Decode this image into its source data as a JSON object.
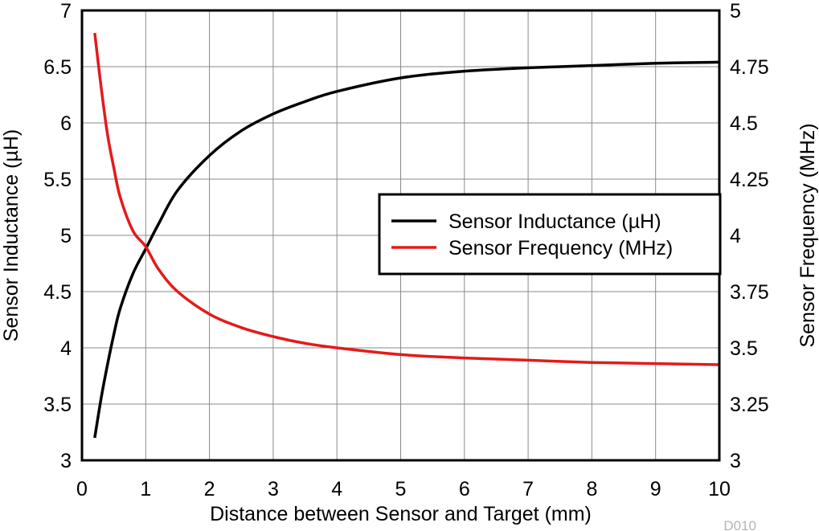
{
  "chart_data": {
    "type": "line",
    "xlabel": "Distance between Sensor and Target (mm)",
    "ylabel_left": "Sensor Inductance (µH)",
    "ylabel_right": "Sensor Frequency (MHz)",
    "xlim": [
      0,
      10
    ],
    "ylim_left": [
      3,
      7
    ],
    "ylim_right": [
      3,
      5
    ],
    "x_ticks": [
      "0",
      "1",
      "2",
      "3",
      "4",
      "5",
      "6",
      "7",
      "8",
      "9",
      "10"
    ],
    "y_left_ticks": [
      "3",
      "3.5",
      "4",
      "4.5",
      "5",
      "5.5",
      "6",
      "6.5",
      "7"
    ],
    "y_right_ticks": [
      "3",
      "3.25",
      "3.5",
      "3.75",
      "4",
      "4.25",
      "4.5",
      "4.75",
      "5"
    ],
    "grid": true,
    "legend_position": "center-right",
    "note": "D010",
    "series": [
      {
        "name": "Sensor Inductance (µH)",
        "axis": "left",
        "color": "#000000",
        "x": [
          0.2,
          0.3,
          0.4,
          0.5,
          0.6,
          0.8,
          1.0,
          1.2,
          1.5,
          2.0,
          2.5,
          3.0,
          3.5,
          4.0,
          5.0,
          6.0,
          7.0,
          8.0,
          9.0,
          10.0
        ],
        "y": [
          3.2,
          3.55,
          3.85,
          4.12,
          4.35,
          4.66,
          4.88,
          5.1,
          5.4,
          5.71,
          5.93,
          6.08,
          6.19,
          6.28,
          6.4,
          6.46,
          6.49,
          6.51,
          6.53,
          6.54
        ]
      },
      {
        "name": "Sensor Frequency (MHz)",
        "axis": "right",
        "color": "#e41a1a",
        "x": [
          0.2,
          0.3,
          0.4,
          0.5,
          0.6,
          0.8,
          1.0,
          1.2,
          1.5,
          2.0,
          2.5,
          3.0,
          3.5,
          4.0,
          5.0,
          6.0,
          7.0,
          8.0,
          9.0,
          10.0
        ],
        "y": [
          4.9,
          4.66,
          4.45,
          4.3,
          4.17,
          4.02,
          3.95,
          3.85,
          3.75,
          3.65,
          3.59,
          3.55,
          3.52,
          3.5,
          3.47,
          3.455,
          3.445,
          3.435,
          3.43,
          3.425
        ]
      }
    ]
  }
}
